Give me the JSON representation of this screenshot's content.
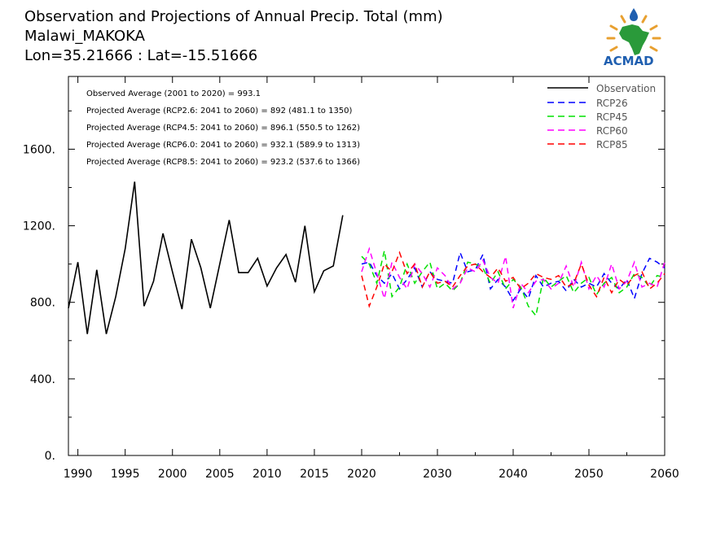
{
  "header": {
    "title_lines": [
      "Observation and Projections of Annual Precip. Total (mm)",
      "Malawi_MAKOKA",
      "Lon=35.21666 : Lat=-15.51666"
    ]
  },
  "logo": {
    "text": "ACMAD"
  },
  "colors": {
    "Observation": "#000000",
    "RCP26": "#0000ff",
    "RCP45": "#00e000",
    "RCP60": "#ff00ff",
    "RCP85": "#ff0000"
  },
  "chart_data": {
    "type": "line",
    "title": "Observation and Projections of Annual Precip. Total (mm)",
    "xlabel": "",
    "ylabel": "",
    "xlim": [
      1989,
      2060
    ],
    "ylim": [
      0,
      1980
    ],
    "x_ticks": [
      1990,
      1995,
      2000,
      2005,
      2010,
      2015,
      2020,
      2030,
      2040,
      2050,
      2060
    ],
    "y_ticks": [
      0,
      400,
      800,
      1200,
      1600
    ],
    "y_tick_labels": [
      "0.",
      "400.",
      "800.",
      "1200.",
      "1600."
    ],
    "grid": false,
    "legend_position": "top-right",
    "annotations": [
      "Observed Average (2001 to 2020) = 993.1",
      "Projected Average (RCP2.6: 2041 to 2060) = 892 (481.1 to 1350)",
      "Projected Average (RCP4.5: 2041 to 2060) = 896.1 (550.5 to 1262)",
      "Projected Average (RCP6.0: 2041 to 2060) = 932.1 (589.9 to 1313)",
      "Projected Average (RCP8.5: 2041 to 2060) = 923.2 (537.6 to 1366)"
    ],
    "series": [
      {
        "name": "Observation",
        "style": "solid",
        "x": [
          1989,
          1990,
          1991,
          1992,
          1993,
          1994,
          1995,
          1996,
          1997,
          1998,
          1999,
          2000,
          2001,
          2002,
          2003,
          2004,
          2005,
          2006,
          2007,
          2008,
          2009,
          2010,
          2011,
          2012,
          2013,
          2014,
          2015,
          2016,
          2017,
          2018,
          2019,
          2020
        ],
        "values": [
          770,
          1010,
          635,
          970,
          635,
          830,
          1080,
          1430,
          780,
          910,
          1160,
          960,
          765,
          1130,
          980,
          770,
          1000,
          1230,
          955,
          955,
          1030,
          885,
          980,
          1050,
          905,
          1200,
          855,
          965,
          990,
          1255,
          null,
          null
        ]
      },
      {
        "name": "RCP26",
        "style": "dashed",
        "x": [
          2020,
          2021,
          2022,
          2023,
          2024,
          2025,
          2026,
          2027,
          2028,
          2029,
          2030,
          2031,
          2032,
          2033,
          2034,
          2035,
          2036,
          2037,
          2038,
          2039,
          2040,
          2041,
          2042,
          2043,
          2044,
          2045,
          2046,
          2047,
          2048,
          2049,
          2050,
          2051,
          2052,
          2053,
          2054,
          2055,
          2056,
          2057,
          2058,
          2059,
          2060
        ],
        "values": [
          1000,
          1010,
          940,
          900,
          950,
          870,
          920,
          980,
          880,
          960,
          920,
          910,
          900,
          1060,
          960,
          970,
          1050,
          870,
          920,
          880,
          810,
          870,
          820,
          940,
          880,
          900,
          910,
          860,
          920,
          880,
          900,
          880,
          950,
          900,
          870,
          920,
          820,
          950,
          1030,
          1010,
          980
        ]
      },
      {
        "name": "RCP45",
        "style": "dashed",
        "x": [
          2020,
          2021,
          2022,
          2023,
          2024,
          2025,
          2026,
          2027,
          2028,
          2029,
          2030,
          2031,
          2032,
          2033,
          2034,
          2035,
          2036,
          2037,
          2038,
          2039,
          2040,
          2041,
          2042,
          2043,
          2044,
          2045,
          2046,
          2047,
          2048,
          2049,
          2050,
          2051,
          2052,
          2053,
          2054,
          2055,
          2056,
          2057,
          2058,
          2059,
          2060
        ],
        "values": [
          1040,
          1000,
          900,
          1070,
          830,
          880,
          1000,
          900,
          960,
          1010,
          870,
          900,
          860,
          900,
          1010,
          1000,
          980,
          900,
          960,
          870,
          920,
          880,
          780,
          730,
          930,
          880,
          910,
          940,
          850,
          900,
          930,
          840,
          900,
          930,
          850,
          880,
          950,
          930,
          880,
          940,
          930
        ]
      },
      {
        "name": "RCP60",
        "style": "dashed",
        "x": [
          2020,
          2021,
          2022,
          2023,
          2024,
          2025,
          2026,
          2027,
          2028,
          2029,
          2030,
          2031,
          2032,
          2033,
          2034,
          2035,
          2036,
          2037,
          2038,
          2039,
          2040,
          2041,
          2042,
          2043,
          2044,
          2045,
          2046,
          2047,
          2048,
          2049,
          2050,
          2051,
          2052,
          2053,
          2054,
          2055,
          2056,
          2057,
          2058,
          2059,
          2060
        ],
        "values": [
          960,
          1080,
          950,
          820,
          1010,
          930,
          870,
          1000,
          950,
          880,
          980,
          940,
          870,
          900,
          980,
          960,
          1020,
          930,
          900,
          1040,
          770,
          900,
          850,
          910,
          920,
          870,
          900,
          990,
          880,
          1010,
          870,
          940,
          880,
          1000,
          870,
          910,
          1010,
          880,
          900,
          880,
          1010
        ]
      },
      {
        "name": "RCP85",
        "style": "dashed",
        "x": [
          2020,
          2021,
          2022,
          2023,
          2024,
          2025,
          2026,
          2027,
          2028,
          2029,
          2030,
          2031,
          2032,
          2033,
          2034,
          2035,
          2036,
          2037,
          2038,
          2039,
          2040,
          2041,
          2042,
          2043,
          2044,
          2045,
          2046,
          2047,
          2048,
          2049,
          2050,
          2051,
          2052,
          2053,
          2054,
          2055,
          2056,
          2057,
          2058,
          2059,
          2060
        ],
        "values": [
          940,
          780,
          880,
          1000,
          960,
          1060,
          950,
          1000,
          880,
          960,
          900,
          910,
          880,
          940,
          990,
          1000,
          960,
          930,
          980,
          910,
          930,
          870,
          900,
          950,
          930,
          920,
          940,
          880,
          900,
          1000,
          890,
          830,
          930,
          850,
          920,
          890,
          940,
          960,
          870,
          900,
          950
        ]
      }
    ]
  }
}
